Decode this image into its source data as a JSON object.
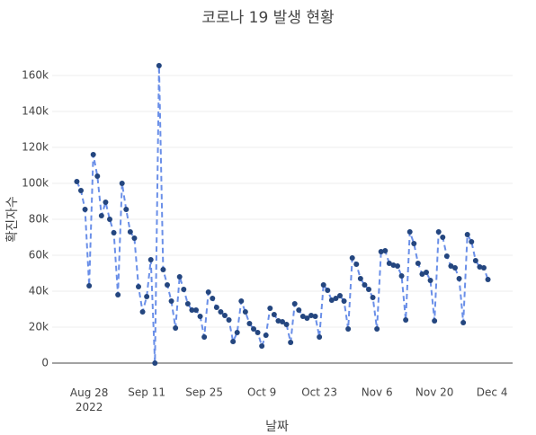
{
  "chart_data": {
    "type": "line",
    "title": "코로나 19 발생 현황",
    "x_label": "날짜",
    "y_label": "확진자수",
    "x": [
      "2022-08-25",
      "2022-08-26",
      "2022-08-27",
      "2022-08-28",
      "2022-08-29",
      "2022-08-30",
      "2022-08-31",
      "2022-09-01",
      "2022-09-02",
      "2022-09-03",
      "2022-09-04",
      "2022-09-05",
      "2022-09-06",
      "2022-09-07",
      "2022-09-08",
      "2022-09-09",
      "2022-09-10",
      "2022-09-11",
      "2022-09-12",
      "2022-09-13",
      "2022-09-14",
      "2022-09-15",
      "2022-09-16",
      "2022-09-17",
      "2022-09-18",
      "2022-09-19",
      "2022-09-20",
      "2022-09-21",
      "2022-09-22",
      "2022-09-23",
      "2022-09-24",
      "2022-09-25",
      "2022-09-26",
      "2022-09-27",
      "2022-09-28",
      "2022-09-29",
      "2022-09-30",
      "2022-10-01",
      "2022-10-02",
      "2022-10-03",
      "2022-10-04",
      "2022-10-05",
      "2022-10-06",
      "2022-10-07",
      "2022-10-08",
      "2022-10-09",
      "2022-10-10",
      "2022-10-11",
      "2022-10-12",
      "2022-10-13",
      "2022-10-14",
      "2022-10-15",
      "2022-10-16",
      "2022-10-17",
      "2022-10-18",
      "2022-10-19",
      "2022-10-20",
      "2022-10-21",
      "2022-10-22",
      "2022-10-23",
      "2022-10-24",
      "2022-10-25",
      "2022-10-26",
      "2022-10-27",
      "2022-10-28",
      "2022-10-29",
      "2022-10-30",
      "2022-10-31",
      "2022-11-01",
      "2022-11-02",
      "2022-11-03",
      "2022-11-04",
      "2022-11-05",
      "2022-11-06",
      "2022-11-07",
      "2022-11-08",
      "2022-11-09",
      "2022-11-10",
      "2022-11-11",
      "2022-11-12",
      "2022-11-13",
      "2022-11-14",
      "2022-11-15",
      "2022-11-16",
      "2022-11-17",
      "2022-11-18",
      "2022-11-19",
      "2022-11-20",
      "2022-11-21",
      "2022-11-22",
      "2022-11-23",
      "2022-11-24",
      "2022-11-25",
      "2022-11-26",
      "2022-11-27",
      "2022-11-28",
      "2022-11-29",
      "2022-11-30",
      "2022-12-01",
      "2022-12-02",
      "2022-12-03"
    ],
    "series": [
      {
        "name": "확진자수",
        "line_color": "#6a8fe8",
        "marker_color": "#24467f",
        "values": [
          101000,
          96000,
          85500,
          43000,
          116000,
          104000,
          82000,
          89500,
          80000,
          72500,
          38000,
          100000,
          85500,
          73000,
          69500,
          42500,
          28500,
          37000,
          57500,
          0,
          165500,
          52000,
          43500,
          34500,
          19500,
          48000,
          41000,
          33000,
          29500,
          29500,
          26000,
          14500,
          39500,
          36000,
          31000,
          28500,
          26500,
          24000,
          12000,
          17000,
          34500,
          28500,
          22000,
          19000,
          17000,
          9500,
          15500,
          30500,
          27000,
          23500,
          23000,
          21500,
          11500,
          33000,
          29500,
          26000,
          25000,
          26500,
          26000,
          14500,
          43500,
          40500,
          35000,
          36000,
          37500,
          34500,
          19000,
          58500,
          55000,
          47000,
          43500,
          41000,
          36500,
          19000,
          62000,
          62500,
          55500,
          54500,
          54000,
          48500,
          24000,
          73000,
          66500,
          55500,
          49500,
          50500,
          46000,
          23500,
          73000,
          70000,
          59500,
          54000,
          53000,
          47000,
          22500,
          71500,
          67500,
          57000,
          53500,
          53000,
          46500
        ]
      }
    ],
    "xlim": [
      "2022-08-19",
      "2022-12-09"
    ],
    "xticks": [
      {
        "value": "2022-08-28",
        "label": "Aug 28\n2022"
      },
      {
        "value": "2022-09-11",
        "label": "Sep 11"
      },
      {
        "value": "2022-09-25",
        "label": "Sep 25"
      },
      {
        "value": "2022-10-09",
        "label": "Oct 9"
      },
      {
        "value": "2022-10-23",
        "label": "Oct 23"
      },
      {
        "value": "2022-11-06",
        "label": "Nov 6"
      },
      {
        "value": "2022-11-20",
        "label": "Nov 20"
      },
      {
        "value": "2022-12-04",
        "label": "Dec 4"
      }
    ],
    "ylim": [
      0,
      172000
    ],
    "yticks": [
      0,
      {
        "value": 20000,
        "label": "20k"
      },
      {
        "value": 40000,
        "label": "40k"
      },
      {
        "value": 60000,
        "label": "60k"
      },
      {
        "value": 80000,
        "label": "80k"
      },
      {
        "value": 100000,
        "label": "100k"
      },
      {
        "value": 120000,
        "label": "120k"
      },
      {
        "value": 140000,
        "label": "140k"
      },
      {
        "value": 160000,
        "label": "160k"
      }
    ],
    "grid": true,
    "dash": true
  }
}
